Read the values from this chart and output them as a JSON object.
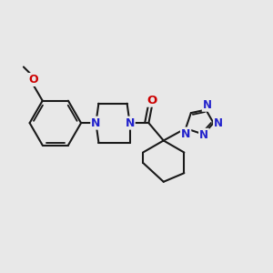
{
  "background_color": "#e8e8e8",
  "bond_color": "#1a1a1a",
  "n_color": "#2222cc",
  "o_color": "#cc0000",
  "line_width": 1.5,
  "font_size_atom": 8.5,
  "xlim": [
    0,
    10
  ],
  "ylim": [
    0,
    10
  ]
}
